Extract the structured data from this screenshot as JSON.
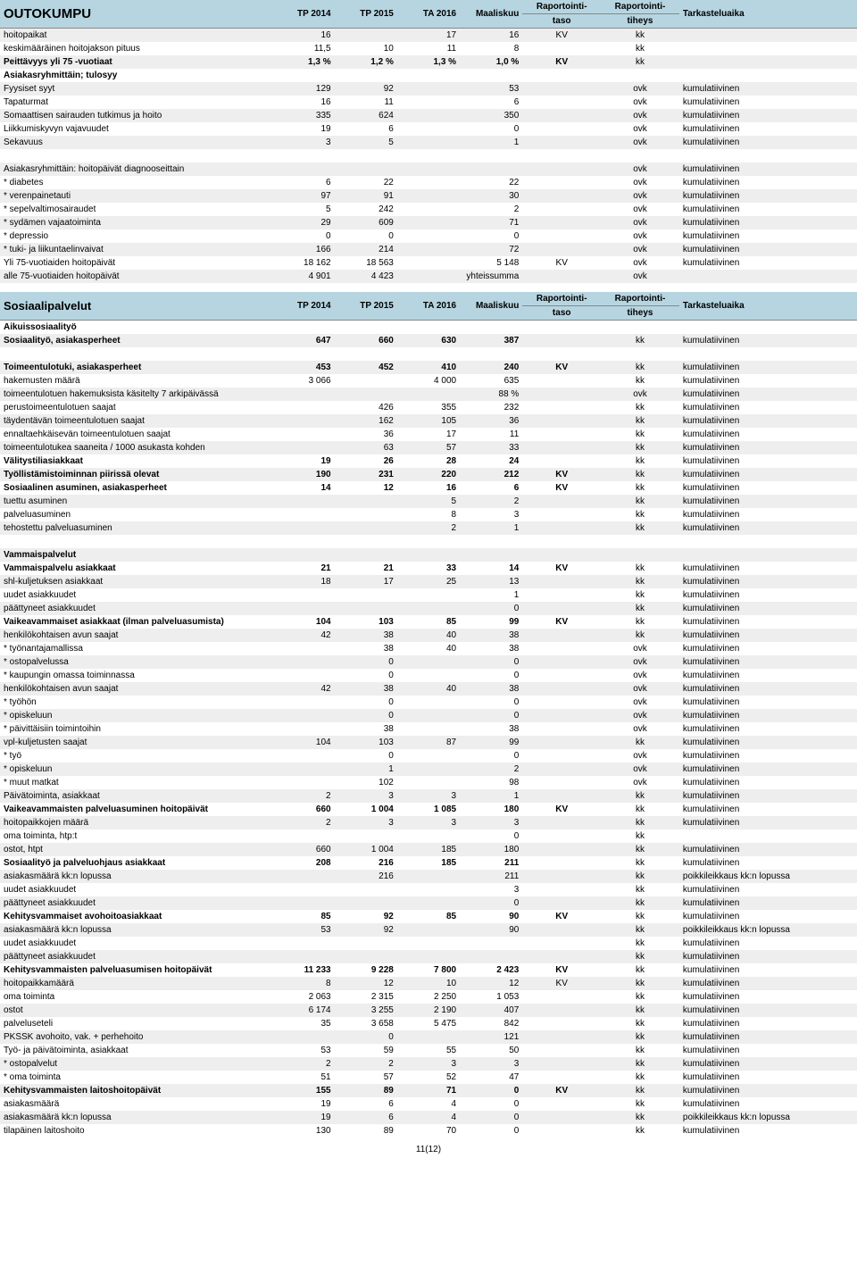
{
  "footer": "11(12)",
  "colors": {
    "header_bg": "#b6d5e0",
    "shade_bg": "#eeeeee",
    "text": "#000000",
    "background": "#ffffff"
  },
  "table1": {
    "title": "OUTOKUMPU",
    "headers": [
      "TP 2014",
      "TP 2015",
      "TA 2016",
      "Maaliskuu",
      "Raportointi-\ntaso",
      "Raportointi-\ntiheys",
      "Tarkasteluaika"
    ],
    "rows": [
      {
        "label": "hoitopaikat",
        "c": [
          "16",
          "",
          "17",
          "16",
          "KV",
          "kk",
          ""
        ],
        "shade": true
      },
      {
        "label": "keskimääräinen hoitojakson pituus",
        "c": [
          "11,5",
          "10",
          "11",
          "8",
          "",
          "kk",
          ""
        ]
      },
      {
        "label": "Peittävyys yli 75 -vuotiaat",
        "c": [
          "1,3 %",
          "1,2 %",
          "1,3 %",
          "1,0 %",
          "KV",
          "kk",
          ""
        ],
        "shade": true,
        "bold": true
      },
      {
        "label": "Asiakasryhmittäin; tulosyy",
        "c": [
          "",
          "",
          "",
          "",
          "",
          "",
          ""
        ],
        "bold": true
      },
      {
        "label": "Fyysiset syyt",
        "c": [
          "129",
          "92",
          "",
          "53",
          "",
          "ovk",
          "kumulatiivinen"
        ],
        "shade": true
      },
      {
        "label": "Tapaturmat",
        "c": [
          "16",
          "11",
          "",
          "6",
          "",
          "ovk",
          "kumulatiivinen"
        ]
      },
      {
        "label": "Somaattisen sairauden tutkimus ja hoito",
        "c": [
          "335",
          "624",
          "",
          "350",
          "",
          "ovk",
          "kumulatiivinen"
        ],
        "shade": true
      },
      {
        "label": "Liikkumiskyvyn vajavuudet",
        "c": [
          "19",
          "6",
          "",
          "0",
          "",
          "ovk",
          "kumulatiivinen"
        ]
      },
      {
        "label": "Sekavuus",
        "c": [
          "3",
          "5",
          "",
          "1",
          "",
          "ovk",
          "kumulatiivinen"
        ],
        "shade": true
      },
      {
        "label": "",
        "c": [
          "",
          "",
          "",
          "",
          "",
          "",
          ""
        ]
      },
      {
        "label": "Asiakasryhmittäin: hoitopäivät diagnooseittain",
        "c": [
          "",
          "",
          "",
          "",
          "",
          "ovk",
          "kumulatiivinen"
        ],
        "shade": true
      },
      {
        "label": "  * diabetes",
        "c": [
          "6",
          "22",
          "",
          "22",
          "",
          "ovk",
          "kumulatiivinen"
        ]
      },
      {
        "label": "  * verenpainetauti",
        "c": [
          "97",
          "91",
          "",
          "30",
          "",
          "ovk",
          "kumulatiivinen"
        ],
        "shade": true
      },
      {
        "label": "  * sepelvaltimosairaudet",
        "c": [
          "5",
          "242",
          "",
          "2",
          "",
          "ovk",
          "kumulatiivinen"
        ]
      },
      {
        "label": "  * sydämen vajaatoiminta",
        "c": [
          "29",
          "609",
          "",
          "71",
          "",
          "ovk",
          "kumulatiivinen"
        ],
        "shade": true
      },
      {
        "label": "  * depressio",
        "c": [
          "0",
          "0",
          "",
          "0",
          "",
          "ovk",
          "kumulatiivinen"
        ]
      },
      {
        "label": "  * tuki- ja liikuntaelinvaivat",
        "c": [
          "166",
          "214",
          "",
          "72",
          "",
          "ovk",
          "kumulatiivinen"
        ],
        "shade": true
      },
      {
        "label": "Yli 75-vuotiaiden hoitopäivät",
        "c": [
          "18 162",
          "18 563",
          "",
          "5 148",
          "KV",
          "ovk",
          "kumulatiivinen"
        ]
      },
      {
        "label": "alle 75-vuotiaiden hoitopäivät",
        "c": [
          "4 901",
          "4 423",
          "",
          "yhteissumma",
          "",
          "ovk",
          ""
        ],
        "shade": true
      }
    ]
  },
  "table2": {
    "title": "Sosiaalipalvelut",
    "headers": [
      "TP 2014",
      "TP 2015",
      "TA 2016",
      "Maaliskuu",
      "Raportointi-\ntaso",
      "Raportointi-\ntiheys",
      "Tarkasteluaika"
    ],
    "rows": [
      {
        "label": "Aikuissosiaalityö",
        "c": [
          "",
          "",
          "",
          "",
          "",
          "",
          ""
        ],
        "bold": true
      },
      {
        "label": "Sosiaalityö, asiakasperheet",
        "c": [
          "647",
          "660",
          "630",
          "387",
          "",
          "kk",
          "kumulatiivinen"
        ],
        "shade": true,
        "bold": true
      },
      {
        "label": "",
        "c": [
          "",
          "",
          "",
          "",
          "",
          "",
          ""
        ]
      },
      {
        "label": "Toimeentulotuki, asiakasperheet",
        "c": [
          "453",
          "452",
          "410",
          "240",
          "KV",
          "kk",
          "kumulatiivinen"
        ],
        "shade": true,
        "bold": true
      },
      {
        "label": "hakemusten määrä",
        "c": [
          "3 066",
          "",
          "4 000",
          "635",
          "",
          "kk",
          "kumulatiivinen"
        ]
      },
      {
        "label": "toimeentulotuen hakemuksista käsitelty 7 arkipäivässä",
        "c": [
          "",
          "",
          "",
          "88 %",
          "",
          "ovk",
          "kumulatiivinen"
        ],
        "shade": true
      },
      {
        "label": "perustoimeentulotuen saajat",
        "c": [
          "",
          "426",
          "355",
          "232",
          "",
          "kk",
          "kumulatiivinen"
        ]
      },
      {
        "label": "täydentävän toimeentulotuen saajat",
        "c": [
          "",
          "162",
          "105",
          "36",
          "",
          "kk",
          "kumulatiivinen"
        ],
        "shade": true
      },
      {
        "label": "ennaltaehkäisevän toimeentulotuen saajat",
        "c": [
          "",
          "36",
          "17",
          "11",
          "",
          "kk",
          "kumulatiivinen"
        ]
      },
      {
        "label": "toimeentulotukea saaneita / 1000 asukasta kohden",
        "c": [
          "",
          "63",
          "57",
          "33",
          "",
          "kk",
          "kumulatiivinen"
        ],
        "shade": true
      },
      {
        "label": "Välitystiliasiakkaat",
        "c": [
          "19",
          "26",
          "28",
          "24",
          "",
          "kk",
          "kumulatiivinen"
        ],
        "bold": true
      },
      {
        "label": "Työllistämistoiminnan piirissä olevat",
        "c": [
          "190",
          "231",
          "220",
          "212",
          "KV",
          "kk",
          "kumulatiivinen"
        ],
        "shade": true,
        "bold": true
      },
      {
        "label": "Sosiaalinen asuminen, asiakasperheet",
        "c": [
          "14",
          "12",
          "16",
          "6",
          "KV",
          "kk",
          "kumulatiivinen"
        ],
        "bold": true
      },
      {
        "label": "tuettu asuminen",
        "c": [
          "",
          "",
          "5",
          "2",
          "",
          "kk",
          "kumulatiivinen"
        ],
        "shade": true
      },
      {
        "label": "palveluasuminen",
        "c": [
          "",
          "",
          "8",
          "3",
          "",
          "kk",
          "kumulatiivinen"
        ]
      },
      {
        "label": "tehostettu palveluasuminen",
        "c": [
          "",
          "",
          "2",
          "1",
          "",
          "kk",
          "kumulatiivinen"
        ],
        "shade": true
      },
      {
        "label": "",
        "c": [
          "",
          "",
          "",
          "",
          "",
          "",
          ""
        ]
      },
      {
        "label": "Vammaispalvelut",
        "c": [
          "",
          "",
          "",
          "",
          "",
          "",
          ""
        ],
        "bold": true,
        "shade": true
      },
      {
        "label": "Vammaispalvelu asiakkaat",
        "c": [
          "21",
          "21",
          "33",
          "14",
          "KV",
          "kk",
          "kumulatiivinen"
        ],
        "bold": true
      },
      {
        "label": "shl-kuljetuksen asiakkaat",
        "c": [
          "18",
          "17",
          "25",
          "13",
          "",
          "kk",
          "kumulatiivinen"
        ],
        "shade": true
      },
      {
        "label": "uudet asiakkuudet",
        "c": [
          "",
          "",
          "",
          "1",
          "",
          "kk",
          "kumulatiivinen"
        ]
      },
      {
        "label": "päättyneet asiakkuudet",
        "c": [
          "",
          "",
          "",
          "0",
          "",
          "kk",
          "kumulatiivinen"
        ],
        "shade": true
      },
      {
        "label": "Vaikeavammaiset asiakkaat (ilman palveluasumista)",
        "c": [
          "104",
          "103",
          "85",
          "99",
          "KV",
          "kk",
          "kumulatiivinen"
        ],
        "bold": true
      },
      {
        "label": "henkilökohtaisen avun saajat",
        "c": [
          "42",
          "38",
          "40",
          "38",
          "",
          "kk",
          "kumulatiivinen"
        ],
        "shade": true
      },
      {
        "label": "  * työnantajamallissa",
        "c": [
          "",
          "38",
          "40",
          "38",
          "",
          "ovk",
          "kumulatiivinen"
        ]
      },
      {
        "label": "  * ostopalvelussa",
        "c": [
          "",
          "0",
          "",
          "0",
          "",
          "ovk",
          "kumulatiivinen"
        ],
        "shade": true
      },
      {
        "label": "  * kaupungin omassa toiminnassa",
        "c": [
          "",
          "0",
          "",
          "0",
          "",
          "ovk",
          "kumulatiivinen"
        ]
      },
      {
        "label": "henkilökohtaisen avun saajat",
        "c": [
          "42",
          "38",
          "40",
          "38",
          "",
          "ovk",
          "kumulatiivinen"
        ],
        "shade": true
      },
      {
        "label": "  * työhön",
        "c": [
          "",
          "0",
          "",
          "0",
          "",
          "ovk",
          "kumulatiivinen"
        ]
      },
      {
        "label": "  * opiskeluun",
        "c": [
          "",
          "0",
          "",
          "0",
          "",
          "ovk",
          "kumulatiivinen"
        ],
        "shade": true
      },
      {
        "label": "  * päivittäisiin toimintoihin",
        "c": [
          "",
          "38",
          "",
          "38",
          "",
          "ovk",
          "kumulatiivinen"
        ]
      },
      {
        "label": "vpl-kuljetusten saajat",
        "c": [
          "104",
          "103",
          "87",
          "99",
          "",
          "kk",
          "kumulatiivinen"
        ],
        "shade": true
      },
      {
        "label": "  * työ",
        "c": [
          "",
          "0",
          "",
          "0",
          "",
          "ovk",
          "kumulatiivinen"
        ]
      },
      {
        "label": "  * opiskeluun",
        "c": [
          "",
          "1",
          "",
          "2",
          "",
          "ovk",
          "kumulatiivinen"
        ],
        "shade": true
      },
      {
        "label": "  * muut matkat",
        "c": [
          "",
          "102",
          "",
          "98",
          "",
          "ovk",
          "kumulatiivinen"
        ]
      },
      {
        "label": "Päivätoiminta, asiakkaat",
        "c": [
          "2",
          "3",
          "3",
          "1",
          "",
          "kk",
          "kumulatiivinen"
        ],
        "shade": true
      },
      {
        "label": "Vaikeavammaisten palveluasuminen hoitopäivät",
        "c": [
          "660",
          "1 004",
          "1 085",
          "180",
          "KV",
          "kk",
          "kumulatiivinen"
        ],
        "bold": true
      },
      {
        "label": "hoitopaikkojen määrä",
        "c": [
          "2",
          "3",
          "3",
          "3",
          "",
          "kk",
          "kumulatiivinen"
        ],
        "shade": true
      },
      {
        "label": "oma toiminta, htp:t",
        "c": [
          "",
          "",
          "",
          "0",
          "",
          "kk",
          ""
        ]
      },
      {
        "label": "ostot, htpt",
        "c": [
          "660",
          "1 004",
          "185",
          "180",
          "",
          "kk",
          "kumulatiivinen"
        ],
        "shade": true
      },
      {
        "label": "Sosiaalityö ja palveluohjaus asiakkaat",
        "c": [
          "208",
          "216",
          "185",
          "211",
          "",
          "kk",
          "kumulatiivinen"
        ],
        "bold": true
      },
      {
        "label": "asiakasmäärä kk:n lopussa",
        "c": [
          "",
          "216",
          "",
          "211",
          "",
          "kk",
          "poikkileikkaus kk:n lopussa"
        ],
        "shade": true
      },
      {
        "label": "uudet asiakkuudet",
        "c": [
          "",
          "",
          "",
          "3",
          "",
          "kk",
          "kumulatiivinen"
        ]
      },
      {
        "label": "päättyneet asiakkuudet",
        "c": [
          "",
          "",
          "",
          "0",
          "",
          "kk",
          "kumulatiivinen"
        ],
        "shade": true
      },
      {
        "label": "Kehitysvammaiset avohoitoasiakkaat",
        "c": [
          "85",
          "92",
          "85",
          "90",
          "KV",
          "kk",
          "kumulatiivinen"
        ],
        "bold": true
      },
      {
        "label": "asiakasmäärä kk:n lopussa",
        "c": [
          "53",
          "92",
          "",
          "90",
          "",
          "kk",
          "poikkileikkaus kk:n lopussa"
        ],
        "shade": true
      },
      {
        "label": "uudet asiakkuudet",
        "c": [
          "",
          "",
          "",
          "",
          "",
          "kk",
          "kumulatiivinen"
        ]
      },
      {
        "label": "päättyneet asiakkuudet",
        "c": [
          "",
          "",
          "",
          "",
          "",
          "kk",
          "kumulatiivinen"
        ],
        "shade": true
      },
      {
        "label": "Kehitysvammaisten palveluasumisen hoitopäivät",
        "c": [
          "11 233",
          "9 228",
          "7 800",
          "2 423",
          "KV",
          "kk",
          "kumulatiivinen"
        ],
        "bold": true
      },
      {
        "label": "hoitopaikkamäärä",
        "c": [
          "8",
          "12",
          "10",
          "12",
          "KV",
          "kk",
          "kumulatiivinen"
        ],
        "shade": true
      },
      {
        "label": "oma toiminta",
        "c": [
          "2 063",
          "2 315",
          "2 250",
          "1 053",
          "",
          "kk",
          "kumulatiivinen"
        ]
      },
      {
        "label": "ostot",
        "c": [
          "6 174",
          "3 255",
          "2 190",
          "407",
          "",
          "kk",
          "kumulatiivinen"
        ],
        "shade": true
      },
      {
        "label": "palveluseteli",
        "c": [
          "35",
          "3 658",
          "5 475",
          "842",
          "",
          "kk",
          "kumulatiivinen"
        ]
      },
      {
        "label": "PKSSK avohoito, vak. + perhehoito",
        "c": [
          "",
          "0",
          "",
          "121",
          "",
          "kk",
          "kumulatiivinen"
        ],
        "shade": true
      },
      {
        "label": "Työ- ja päivätoiminta, asiakkaat",
        "c": [
          "53",
          "59",
          "55",
          "50",
          "",
          "kk",
          "kumulatiivinen"
        ]
      },
      {
        "label": "  * ostopalvelut",
        "c": [
          "2",
          "2",
          "3",
          "3",
          "",
          "kk",
          "kumulatiivinen"
        ],
        "shade": true
      },
      {
        "label": "  * oma toiminta",
        "c": [
          "51",
          "57",
          "52",
          "47",
          "",
          "kk",
          "kumulatiivinen"
        ]
      },
      {
        "label": "Kehitysvammaisten laitoshoitopäivät",
        "c": [
          "155",
          "89",
          "71",
          "0",
          "KV",
          "kk",
          "kumulatiivinen"
        ],
        "shade": true,
        "bold": true
      },
      {
        "label": "asiakasmäärä",
        "c": [
          "19",
          "6",
          "4",
          "0",
          "",
          "kk",
          "kumulatiivinen"
        ]
      },
      {
        "label": "asiakasmäärä kk:n lopussa",
        "c": [
          "19",
          "6",
          "4",
          "0",
          "",
          "kk",
          "poikkileikkaus kk:n lopussa"
        ],
        "shade": true
      },
      {
        "label": "tilapäinen laitoshoito",
        "c": [
          "130",
          "89",
          "70",
          "0",
          "",
          "kk",
          "kumulatiivinen"
        ]
      }
    ]
  }
}
